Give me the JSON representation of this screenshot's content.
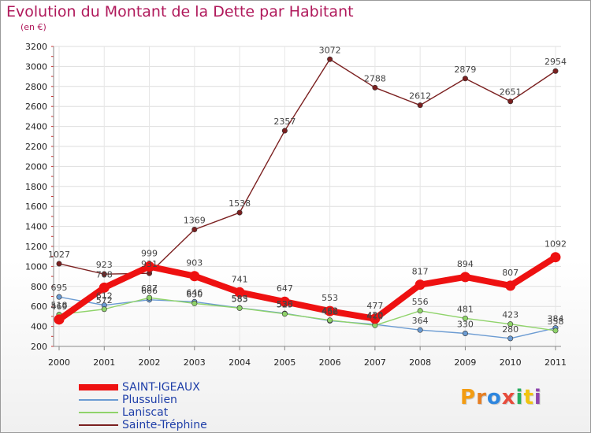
{
  "header": {
    "title": "Evolution du Montant de la Dette par Habitant",
    "subtitle": "(en €)"
  },
  "logo": {
    "letters": [
      "P",
      "r",
      "o",
      "x",
      "i",
      "t",
      "i"
    ],
    "colors": [
      "#f39c12",
      "#e67e22",
      "#2e86de",
      "#e74c3c",
      "#27ae60",
      "#f1c40f",
      "#8e44ad"
    ]
  },
  "chart_data": {
    "type": "line",
    "categories": [
      "2000",
      "2001",
      "2002",
      "2003",
      "2004",
      "2005",
      "2006",
      "2007",
      "2008",
      "2009",
      "2010",
      "2011"
    ],
    "ylim": [
      200,
      3200
    ],
    "yticks": [
      200,
      400,
      600,
      800,
      1000,
      1200,
      1400,
      1600,
      1800,
      2000,
      2200,
      2400,
      2600,
      2800,
      3000,
      3200
    ],
    "grid": true,
    "legend_position": "bottom-left",
    "series": [
      {
        "name": "Sainte-Tréphine",
        "color": "#7b2020",
        "values": [
          1027,
          923,
          931,
          1369,
          1538,
          2357,
          3072,
          2788,
          2612,
          2879,
          2651,
          2954
        ]
      },
      {
        "name": "Plussulien",
        "color": "#6b9bd2",
        "values": [
          695,
          612,
          666,
          646,
          585,
          530,
          456,
          420,
          364,
          330,
          280,
          384
        ]
      },
      {
        "name": "Laniscat",
        "color": "#8fd36a",
        "values": [
          518,
          572,
          687,
          630,
          583,
          525,
          462,
          410,
          556,
          481,
          423,
          358
        ]
      },
      {
        "name": "SAINT-IGEAUX",
        "color": "#ee1111",
        "values": [
          469,
          788,
          999,
          903,
          741,
          647,
          553,
          477,
          817,
          894,
          807,
          1092
        ]
      }
    ],
    "legend_order": [
      "SAINT-IGEAUX",
      "Plussulien",
      "Laniscat",
      "Sainte-Tréphine"
    ]
  }
}
